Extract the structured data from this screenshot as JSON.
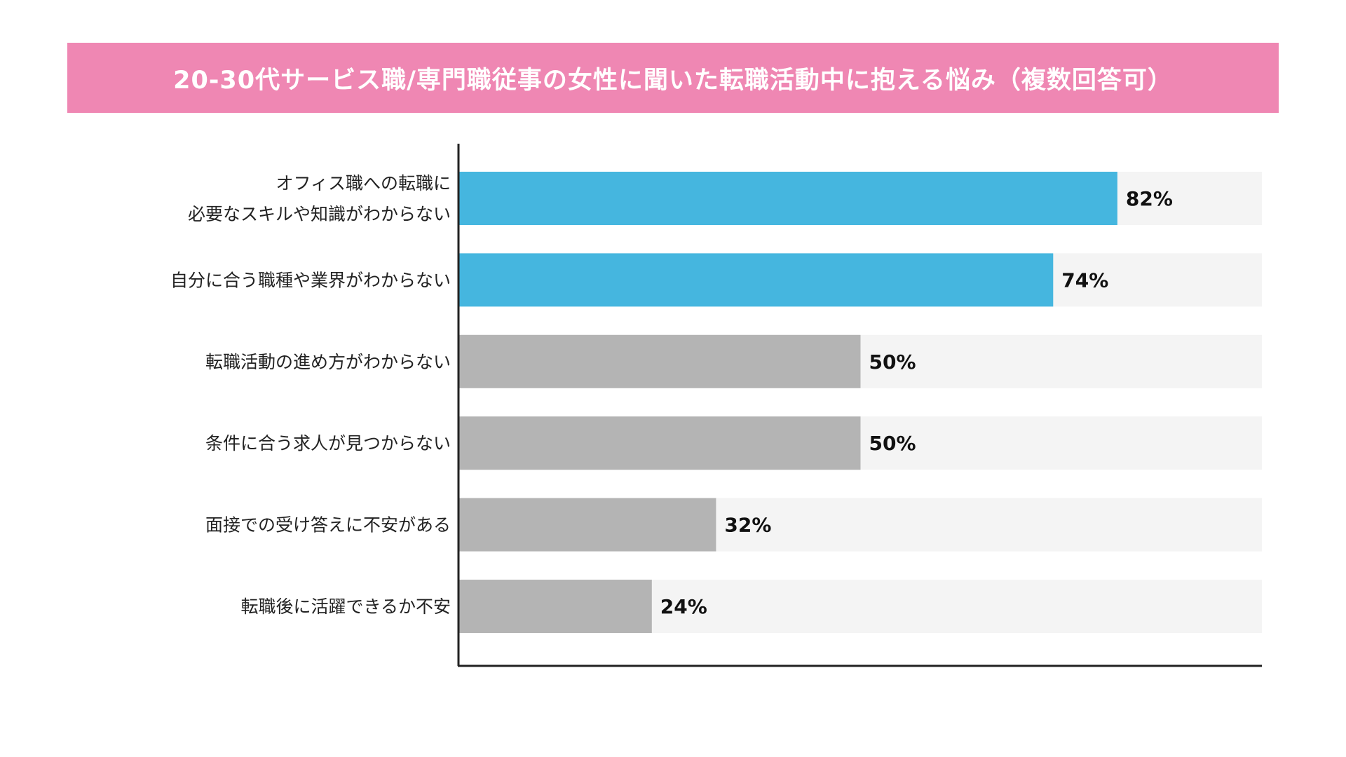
{
  "colors": {
    "banner": "#ef87b3",
    "highlight": "#45b6df",
    "normal": "#b4b4b4",
    "track": "#f4f4f4",
    "axis": "#222222"
  },
  "chart_data": {
    "type": "bar",
    "orientation": "horizontal",
    "title": "20-30代サービス職/専門職従事の女性に聞いた転職活動中に抱える悩み（複数回答可）",
    "categories": [
      [
        "オフィス職への転職に",
        "必要なスキルや知識がわからない"
      ],
      [
        "自分に合う職種や業界がわからない"
      ],
      [
        "転職活動の進め方がわからない"
      ],
      [
        "条件に合う求人が見つからない"
      ],
      [
        "面接での受け答えに不安がある"
      ],
      [
        "転職後に活躍できるか不安"
      ]
    ],
    "values": [
      82,
      74,
      50,
      50,
      32,
      24
    ],
    "value_labels": [
      "82%",
      "74%",
      "50%",
      "50%",
      "32%",
      "24%"
    ],
    "highlighted": [
      true,
      true,
      false,
      false,
      false,
      false
    ],
    "xlim": [
      0,
      100
    ],
    "grid": false,
    "legend": "none",
    "xlabel": "",
    "ylabel": ""
  }
}
